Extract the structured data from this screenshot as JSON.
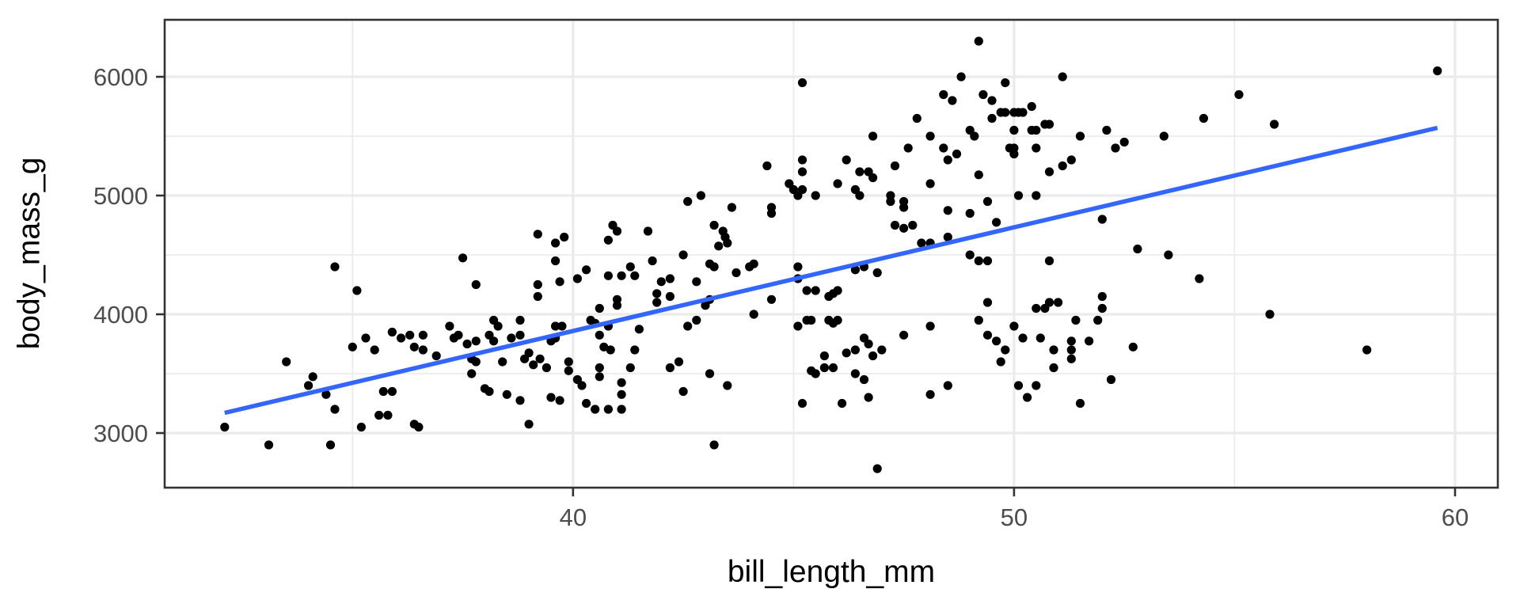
{
  "page": {
    "background": "#ffffff"
  },
  "chart_data": {
    "type": "scatter",
    "title": "",
    "xlabel": "bill_length_mm",
    "ylabel": "body_mass_g",
    "legend": "none",
    "grid": "major+minor",
    "xlim": [
      30.74,
      60.97
    ],
    "ylim": [
      2540,
      6480
    ],
    "x_ticks": [
      40,
      50,
      60
    ],
    "y_ticks": [
      3000,
      4000,
      5000,
      6000
    ],
    "x_minor_gridlines": [
      35,
      45,
      55
    ],
    "y_minor_gridlines": [
      3500,
      4500,
      5500
    ],
    "trend_line": {
      "type": "linear-fit",
      "x1": 32.1,
      "y1": 3170,
      "x2": 59.6,
      "y2": 5570
    },
    "colors": {
      "point": "#000000",
      "trend": "#3366FF",
      "gridline": "#EBEBEB",
      "panel_border": "#333333",
      "tick_mark": "#333333",
      "tick_label": "#4D4D4D",
      "axis_title": "#000000",
      "background": "#FFFFFF"
    },
    "points_xy": [
      [
        49.2,
        6300
      ],
      [
        45.2,
        5950
      ],
      [
        48.8,
        6000
      ],
      [
        48.4,
        5850
      ],
      [
        48.6,
        5800
      ],
      [
        49.3,
        5850
      ],
      [
        47.8,
        5650
      ],
      [
        46.8,
        5500
      ],
      [
        49.0,
        5550
      ],
      [
        49.1,
        5500
      ],
      [
        48.1,
        5500
      ],
      [
        47.6,
        5400
      ],
      [
        48.4,
        5400
      ],
      [
        48.5,
        5300
      ],
      [
        48.7,
        5350
      ],
      [
        44.4,
        5250
      ],
      [
        45.2,
        5300
      ],
      [
        45.2,
        5200
      ],
      [
        46.2,
        5300
      ],
      [
        46.5,
        5200
      ],
      [
        46.7,
        5200
      ],
      [
        47.3,
        5250
      ],
      [
        49.2,
        5175
      ],
      [
        49.8,
        5950
      ],
      [
        51.1,
        6000
      ],
      [
        49.5,
        5800
      ],
      [
        49.5,
        5650
      ],
      [
        49.7,
        5700
      ],
      [
        49.8,
        5700
      ],
      [
        50.0,
        5700
      ],
      [
        50.1,
        5700
      ],
      [
        50.2,
        5700
      ],
      [
        50.4,
        5750
      ],
      [
        50.0,
        5550
      ],
      [
        50.4,
        5550
      ],
      [
        50.5,
        5550
      ],
      [
        50.7,
        5600
      ],
      [
        50.8,
        5600
      ],
      [
        49.9,
        5400
      ],
      [
        50.0,
        5400
      ],
      [
        50.0,
        5350
      ],
      [
        50.5,
        5400
      ],
      [
        51.5,
        5500
      ],
      [
        52.1,
        5550
      ],
      [
        52.3,
        5400
      ],
      [
        52.5,
        5450
      ],
      [
        53.4,
        5500
      ],
      [
        54.3,
        5650
      ],
      [
        55.1,
        5850
      ],
      [
        55.9,
        5600
      ],
      [
        51.3,
        5300
      ],
      [
        51.1,
        5250
      ],
      [
        50.8,
        5200
      ],
      [
        59.6,
        6050
      ],
      [
        44.9,
        5100
      ],
      [
        45.0,
        5050
      ],
      [
        45.2,
        5050
      ],
      [
        45.1,
        5000
      ],
      [
        45.5,
        5000
      ],
      [
        46.0,
        5100
      ],
      [
        46.4,
        5050
      ],
      [
        46.5,
        5000
      ],
      [
        47.2,
        5000
      ],
      [
        47.2,
        4950
      ],
      [
        47.5,
        4950
      ],
      [
        47.5,
        4900
      ],
      [
        48.1,
        5100
      ],
      [
        48.5,
        4875
      ],
      [
        49.4,
        4950
      ],
      [
        46.8,
        5150
      ],
      [
        44.5,
        4900
      ],
      [
        44.5,
        4850
      ],
      [
        42.6,
        4950
      ],
      [
        42.9,
        5000
      ],
      [
        43.6,
        4900
      ],
      [
        43.2,
        4750
      ],
      [
        43.4,
        4700
      ],
      [
        43.45,
        4650
      ],
      [
        43.5,
        4600
      ],
      [
        43.3,
        4575
      ],
      [
        40.9,
        4750
      ],
      [
        41.0,
        4700
      ],
      [
        40.8,
        4625
      ],
      [
        41.7,
        4700
      ],
      [
        42.5,
        4500
      ],
      [
        41.8,
        4450
      ],
      [
        41.3,
        4400
      ],
      [
        40.3,
        4375
      ],
      [
        40.1,
        4300
      ],
      [
        40.8,
        4325
      ],
      [
        41.1,
        4325
      ],
      [
        41.4,
        4325
      ],
      [
        42.0,
        4275
      ],
      [
        42.2,
        4300
      ],
      [
        42.8,
        4275
      ],
      [
        43.1,
        4425
      ],
      [
        43.2,
        4400
      ],
      [
        43.7,
        4350
      ],
      [
        44.0,
        4400
      ],
      [
        44.1,
        4425
      ],
      [
        47.3,
        4750
      ],
      [
        47.5,
        4725
      ],
      [
        47.7,
        4750
      ],
      [
        47.9,
        4600
      ],
      [
        48.1,
        4600
      ],
      [
        48.5,
        4650
      ],
      [
        49.0,
        4850
      ],
      [
        49.0,
        4500
      ],
      [
        49.2,
        4450
      ],
      [
        49.4,
        4450
      ],
      [
        34.6,
        4400
      ],
      [
        35.1,
        4200
      ],
      [
        37.5,
        4475
      ],
      [
        37.8,
        4250
      ],
      [
        39.2,
        4675
      ],
      [
        39.6,
        4600
      ],
      [
        39.8,
        4650
      ],
      [
        39.6,
        4450
      ],
      [
        39.2,
        4250
      ],
      [
        39.2,
        4150
      ],
      [
        39.7,
        4275
      ],
      [
        40.6,
        4050
      ],
      [
        40.4,
        3950
      ],
      [
        40.5,
        3925
      ],
      [
        40.8,
        3900
      ],
      [
        41.0,
        4125
      ],
      [
        41.0,
        4075
      ],
      [
        41.9,
        4100
      ],
      [
        41.9,
        4175
      ],
      [
        42.2,
        4150
      ],
      [
        42.8,
        3950
      ],
      [
        42.6,
        3900
      ],
      [
        43.0,
        4075
      ],
      [
        43.1,
        4125
      ],
      [
        44.1,
        4000
      ],
      [
        44.5,
        4125
      ],
      [
        45.1,
        4400
      ],
      [
        45.1,
        4300
      ],
      [
        45.3,
        4200
      ],
      [
        45.5,
        4200
      ],
      [
        46.0,
        4200
      ],
      [
        45.8,
        4150
      ],
      [
        45.9,
        4175
      ],
      [
        46.6,
        4400
      ],
      [
        46.4,
        4375
      ],
      [
        46.9,
        4350
      ],
      [
        49.2,
        3950
      ],
      [
        45.3,
        3950
      ],
      [
        45.4,
        3950
      ],
      [
        45.8,
        3950
      ],
      [
        45.9,
        3925
      ],
      [
        46.0,
        3950
      ],
      [
        45.1,
        3900
      ],
      [
        37.2,
        3900
      ],
      [
        38.2,
        3950
      ],
      [
        38.3,
        3900
      ],
      [
        38.8,
        3950
      ],
      [
        39.6,
        3900
      ],
      [
        39.75,
        3900
      ],
      [
        41.5,
        3875
      ],
      [
        48.1,
        3900
      ],
      [
        50.1,
        5000
      ],
      [
        50.5,
        5000
      ],
      [
        49.6,
        4775
      ],
      [
        52.0,
        4800
      ],
      [
        52.8,
        4550
      ],
      [
        53.5,
        4500
      ],
      [
        54.2,
        4300
      ],
      [
        50.8,
        4450
      ],
      [
        50.5,
        4050
      ],
      [
        50.7,
        4050
      ],
      [
        50.8,
        4100
      ],
      [
        51.0,
        4100
      ],
      [
        52.0,
        4150
      ],
      [
        52.0,
        4050
      ],
      [
        51.4,
        3950
      ],
      [
        51.9,
        3950
      ],
      [
        50.0,
        3900
      ],
      [
        49.4,
        4100
      ],
      [
        55.8,
        4000
      ],
      [
        32.1,
        3050
      ],
      [
        33.1,
        2900
      ],
      [
        33.5,
        3600
      ],
      [
        34.0,
        3400
      ],
      [
        34.1,
        3475
      ],
      [
        34.4,
        3325
      ],
      [
        34.6,
        3200
      ],
      [
        34.5,
        2900
      ],
      [
        35.0,
        3725
      ],
      [
        35.2,
        3050
      ],
      [
        35.3,
        3800
      ],
      [
        35.5,
        3700
      ],
      [
        35.7,
        3350
      ],
      [
        35.9,
        3350
      ],
      [
        35.6,
        3150
      ],
      [
        35.8,
        3150
      ],
      [
        35.9,
        3850
      ],
      [
        36.1,
        3800
      ],
      [
        36.3,
        3825
      ],
      [
        36.6,
        3825
      ],
      [
        36.4,
        3725
      ],
      [
        36.6,
        3700
      ],
      [
        36.9,
        3650
      ],
      [
        37.3,
        3800
      ],
      [
        37.4,
        3825
      ],
      [
        37.6,
        3750
      ],
      [
        37.8,
        3775
      ],
      [
        37.7,
        3625
      ],
      [
        37.8,
        3600
      ],
      [
        38.1,
        3825
      ],
      [
        38.2,
        3775
      ],
      [
        38.6,
        3800
      ],
      [
        38.8,
        3825
      ],
      [
        37.7,
        3500
      ],
      [
        38.0,
        3375
      ],
      [
        38.1,
        3350
      ],
      [
        38.4,
        3600
      ],
      [
        38.5,
        3325
      ],
      [
        38.9,
        3625
      ],
      [
        39.0,
        3675
      ],
      [
        39.1,
        3575
      ],
      [
        39.25,
        3625
      ],
      [
        38.8,
        3275
      ],
      [
        39.4,
        3550
      ],
      [
        39.5,
        3775
      ],
      [
        39.6,
        3800
      ],
      [
        39.9,
        3600
      ],
      [
        39.9,
        3525
      ],
      [
        39.5,
        3300
      ],
      [
        39.7,
        3275
      ],
      [
        39.0,
        3075
      ],
      [
        36.4,
        3075
      ],
      [
        36.5,
        3050
      ],
      [
        40.6,
        3825
      ],
      [
        40.7,
        3725
      ],
      [
        40.85,
        3700
      ],
      [
        41.4,
        3700
      ],
      [
        40.6,
        3550
      ],
      [
        40.6,
        3475
      ],
      [
        41.3,
        3550
      ],
      [
        40.1,
        3450
      ],
      [
        40.2,
        3400
      ],
      [
        41.1,
        3425
      ],
      [
        41.1,
        3325
      ],
      [
        40.3,
        3250
      ],
      [
        40.5,
        3200
      ],
      [
        40.8,
        3200
      ],
      [
        41.1,
        3200
      ],
      [
        42.2,
        3550
      ],
      [
        42.4,
        3600
      ],
      [
        42.5,
        3350
      ],
      [
        43.1,
        3500
      ],
      [
        43.5,
        3400
      ],
      [
        43.2,
        2900
      ],
      [
        45.4,
        3525
      ],
      [
        45.5,
        3500
      ],
      [
        45.7,
        3550
      ],
      [
        45.7,
        3650
      ],
      [
        45.9,
        3550
      ],
      [
        46.2,
        3675
      ],
      [
        46.4,
        3700
      ],
      [
        46.6,
        3800
      ],
      [
        46.7,
        3750
      ],
      [
        46.8,
        3650
      ],
      [
        47.0,
        3700
      ],
      [
        47.5,
        3825
      ],
      [
        46.4,
        3500
      ],
      [
        46.6,
        3450
      ],
      [
        46.7,
        3300
      ],
      [
        45.2,
        3250
      ],
      [
        46.1,
        3250
      ],
      [
        48.1,
        3325
      ],
      [
        48.5,
        3400
      ],
      [
        46.9,
        2700
      ],
      [
        49.4,
        3825
      ],
      [
        49.6,
        3775
      ],
      [
        49.8,
        3700
      ],
      [
        49.7,
        3600
      ],
      [
        50.2,
        3800
      ],
      [
        50.6,
        3800
      ],
      [
        50.9,
        3700
      ],
      [
        50.9,
        3550
      ],
      [
        51.3,
        3775
      ],
      [
        51.3,
        3700
      ],
      [
        51.3,
        3625
      ],
      [
        51.7,
        3775
      ],
      [
        52.7,
        3725
      ],
      [
        52.2,
        3450
      ],
      [
        50.1,
        3400
      ],
      [
        50.5,
        3400
      ],
      [
        50.3,
        3300
      ],
      [
        51.5,
        3250
      ],
      [
        58.0,
        3700
      ]
    ]
  }
}
